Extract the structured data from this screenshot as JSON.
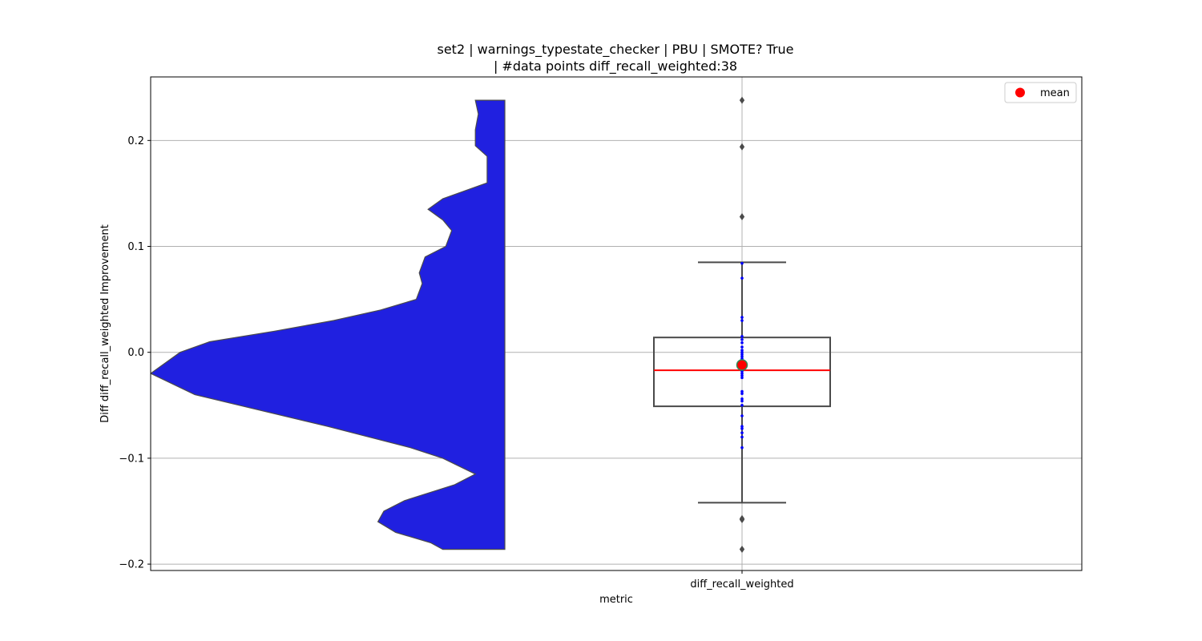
{
  "chart_data": {
    "type": "violin+box",
    "title_line1": "set2 | warnings_typestate_checker | PBU | SMOTE? True",
    "title_line2": "| #data points diff_recall_weighted:38",
    "xlabel": "metric",
    "ylabel": "Diff diff_recall_weighted Improvement",
    "categories": [
      "diff_recall_weighted"
    ],
    "ylim": [
      -0.206,
      0.26
    ],
    "yticks": [
      -0.2,
      -0.1,
      0.0,
      0.1,
      0.2
    ],
    "ytick_labels": [
      "−0.2",
      "−0.1",
      "0.0",
      "0.1",
      "0.2"
    ],
    "grid": true,
    "legend": {
      "placement": "top-right",
      "entries": [
        {
          "label": "mean",
          "color": "#ff0000"
        }
      ]
    },
    "colors": {
      "violin_fill": "#2020e0",
      "violin_edge": "#4a4a4a",
      "box_edge": "#4a4a4a",
      "median_line": "#ff0000",
      "mean_marker": "#ff0000",
      "mean_marker_edge": "#2e8b57",
      "points": "#0000ff",
      "outliers": "#4a4a4a",
      "grid": "#b0b0b0"
    },
    "violin_density": [
      {
        "y": 0.238,
        "w": 0.1
      },
      {
        "y": 0.225,
        "w": 0.09
      },
      {
        "y": 0.21,
        "w": 0.1
      },
      {
        "y": 0.195,
        "w": 0.1
      },
      {
        "y": 0.185,
        "w": 0.06
      },
      {
        "y": 0.175,
        "w": 0.06
      },
      {
        "y": 0.16,
        "w": 0.06
      },
      {
        "y": 0.145,
        "w": 0.21
      },
      {
        "y": 0.135,
        "w": 0.26
      },
      {
        "y": 0.125,
        "w": 0.21
      },
      {
        "y": 0.115,
        "w": 0.18
      },
      {
        "y": 0.1,
        "w": 0.2
      },
      {
        "y": 0.09,
        "w": 0.27
      },
      {
        "y": 0.075,
        "w": 0.29
      },
      {
        "y": 0.065,
        "w": 0.28
      },
      {
        "y": 0.05,
        "w": 0.3
      },
      {
        "y": 0.04,
        "w": 0.42
      },
      {
        "y": 0.03,
        "w": 0.58
      },
      {
        "y": 0.02,
        "w": 0.78
      },
      {
        "y": 0.01,
        "w": 1.0
      },
      {
        "y": 0.0,
        "w": 1.1
      },
      {
        "y": -0.02,
        "w": 1.2
      },
      {
        "y": -0.04,
        "w": 1.05
      },
      {
        "y": -0.05,
        "w": 0.9
      },
      {
        "y": -0.07,
        "w": 0.6
      },
      {
        "y": -0.09,
        "w": 0.32
      },
      {
        "y": -0.1,
        "w": 0.21
      },
      {
        "y": -0.115,
        "w": 0.1
      },
      {
        "y": -0.125,
        "w": 0.17
      },
      {
        "y": -0.14,
        "w": 0.34
      },
      {
        "y": -0.15,
        "w": 0.41
      },
      {
        "y": -0.16,
        "w": 0.43
      },
      {
        "y": -0.17,
        "w": 0.37
      },
      {
        "y": -0.18,
        "w": 0.25
      },
      {
        "y": -0.186,
        "w": 0.21
      }
    ],
    "box": {
      "q1": -0.051,
      "median": -0.017,
      "q3": 0.014,
      "whisker_low": -0.142,
      "whisker_high": 0.085,
      "mean": -0.012
    },
    "outliers": [
      0.238,
      0.194,
      0.128,
      -0.157,
      -0.158,
      -0.186
    ],
    "points": [
      0.084,
      0.07,
      0.033,
      0.03,
      0.015,
      0.012,
      0.009,
      0.005,
      0.002,
      0.0,
      -0.002,
      -0.004,
      -0.006,
      -0.008,
      -0.01,
      -0.012,
      -0.014,
      -0.016,
      -0.018,
      -0.02,
      -0.022,
      -0.024,
      -0.037,
      -0.039,
      -0.044,
      -0.046,
      -0.05,
      -0.06,
      -0.07,
      -0.072,
      -0.076,
      -0.08,
      -0.09
    ]
  }
}
